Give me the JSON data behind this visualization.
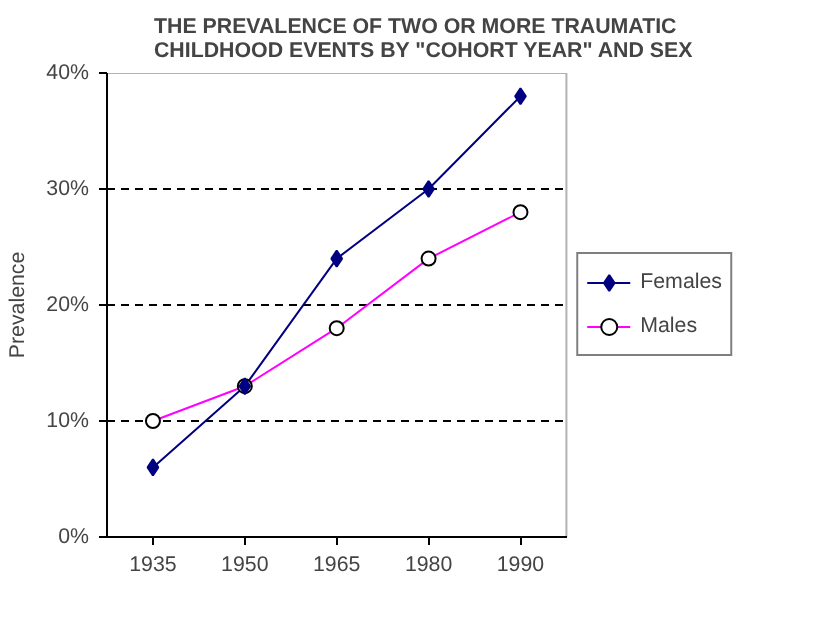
{
  "chart_data": {
    "type": "line",
    "title": "THE PREVALENCE OF TWO OR MORE TRAUMATIC CHILDHOOD EVENTS BY \"COHORT YEAR\" AND SEX",
    "ylabel": "Prevalence",
    "categories": [
      "1935",
      "1950",
      "1965",
      "1980",
      "1990"
    ],
    "series": [
      {
        "name": "Females",
        "color": "#000080",
        "marker": "diamond",
        "values": [
          6,
          13,
          24,
          30,
          38
        ]
      },
      {
        "name": "Males",
        "color": "#ff00ff",
        "marker": "circle",
        "values": [
          10,
          13,
          18,
          24,
          28
        ]
      }
    ],
    "ylim": [
      0,
      40
    ],
    "yticks": [
      {
        "value": 0,
        "label": "0%"
      },
      {
        "value": 10,
        "label": "10%"
      },
      {
        "value": 20,
        "label": "20%"
      },
      {
        "value": 30,
        "label": "30%"
      },
      {
        "value": 40,
        "label": "40%"
      }
    ],
    "grid": "y",
    "legend": "right",
    "line_style": "solid"
  }
}
